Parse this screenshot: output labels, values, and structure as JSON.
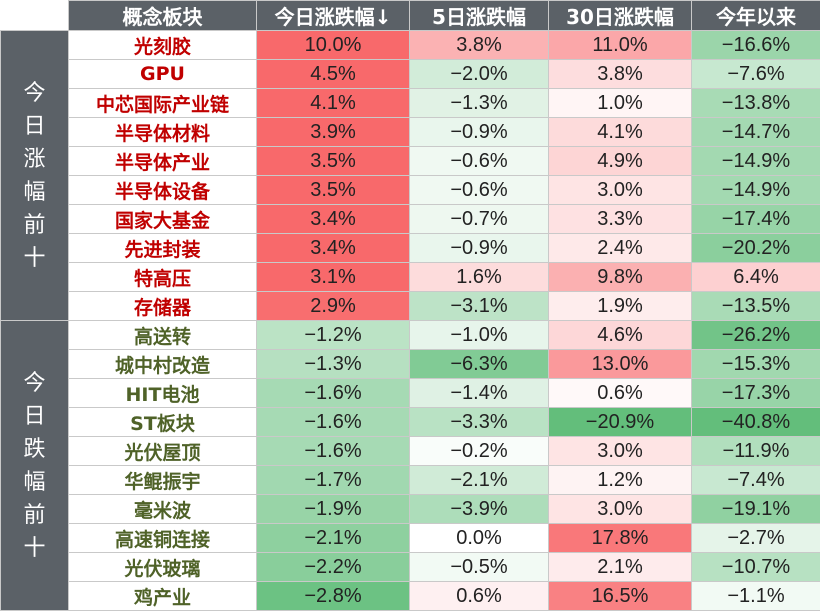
{
  "header": [
    "概念板块",
    "今日涨跌幅↓",
    "5日涨跌幅",
    "30日涨跌幅",
    "今年以来"
  ],
  "groups": [
    {
      "label": [
        "今",
        "日",
        "涨",
        "幅",
        "前",
        "十"
      ],
      "name_color": "#c00000",
      "rows": [
        {
          "name": "光刻胶",
          "today": "10.0%",
          "d5": "3.8%",
          "d30": "11.0%",
          "ytd": "−16.6%"
        },
        {
          "name": "GPU",
          "today": "4.5%",
          "d5": "−2.0%",
          "d30": "3.8%",
          "ytd": "−7.6%"
        },
        {
          "name": "中芯国际产业链",
          "today": "4.1%",
          "d5": "−1.3%",
          "d30": "1.0%",
          "ytd": "−13.8%"
        },
        {
          "name": "半导体材料",
          "today": "3.9%",
          "d5": "−0.9%",
          "d30": "4.1%",
          "ytd": "−14.7%"
        },
        {
          "name": "半导体产业",
          "today": "3.5%",
          "d5": "−0.6%",
          "d30": "4.9%",
          "ytd": "−14.9%"
        },
        {
          "name": "半导体设备",
          "today": "3.5%",
          "d5": "−0.6%",
          "d30": "3.0%",
          "ytd": "−14.9%"
        },
        {
          "name": "国家大基金",
          "today": "3.4%",
          "d5": "−0.7%",
          "d30": "3.3%",
          "ytd": "−17.4%"
        },
        {
          "name": "先进封装",
          "today": "3.4%",
          "d5": "−0.9%",
          "d30": "2.4%",
          "ytd": "−20.2%"
        },
        {
          "name": "特高压",
          "today": "3.1%",
          "d5": "1.6%",
          "d30": "9.8%",
          "ytd": "6.4%"
        },
        {
          "name": "存储器",
          "today": "2.9%",
          "d5": "−3.1%",
          "d30": "1.9%",
          "ytd": "−13.5%"
        }
      ]
    },
    {
      "label": [
        "今",
        "日",
        "跌",
        "幅",
        "前",
        "十"
      ],
      "name_color": "#4f6228",
      "rows": [
        {
          "name": "高送转",
          "today": "−1.2%",
          "d5": "−1.0%",
          "d30": "4.6%",
          "ytd": "−26.2%"
        },
        {
          "name": "城中村改造",
          "today": "−1.3%",
          "d5": "−6.3%",
          "d30": "13.0%",
          "ytd": "−15.3%"
        },
        {
          "name": "HIT电池",
          "today": "−1.6%",
          "d5": "−1.4%",
          "d30": "0.6%",
          "ytd": "−17.3%"
        },
        {
          "name": "ST板块",
          "today": "−1.6%",
          "d5": "−3.3%",
          "d30": "−20.9%",
          "ytd": "−40.8%"
        },
        {
          "name": "光伏屋顶",
          "today": "−1.6%",
          "d5": "−0.2%",
          "d30": "3.0%",
          "ytd": "−11.9%"
        },
        {
          "name": "华鲲振宇",
          "today": "−1.7%",
          "d5": "−2.1%",
          "d30": "1.2%",
          "ytd": "−7.4%"
        },
        {
          "name": "毫米波",
          "today": "−1.9%",
          "d5": "−3.9%",
          "d30": "3.0%",
          "ytd": "−19.1%"
        },
        {
          "name": "高速铜连接",
          "today": "−2.1%",
          "d5": "0.0%",
          "d30": "17.8%",
          "ytd": "−2.7%"
        },
        {
          "name": "光伏玻璃",
          "today": "−2.2%",
          "d5": "−0.5%",
          "d30": "2.1%",
          "ytd": "−10.7%"
        },
        {
          "name": "鸡产业",
          "today": "−2.8%",
          "d5": "0.6%",
          "d30": "16.5%",
          "ytd": "−1.1%"
        }
      ]
    }
  ],
  "colors": {
    "header_bg": "#5b6167",
    "up": "#c00000",
    "down": "#4f6228",
    "pos_heat": "#f8696b",
    "neg_heat": "#63be7b"
  }
}
